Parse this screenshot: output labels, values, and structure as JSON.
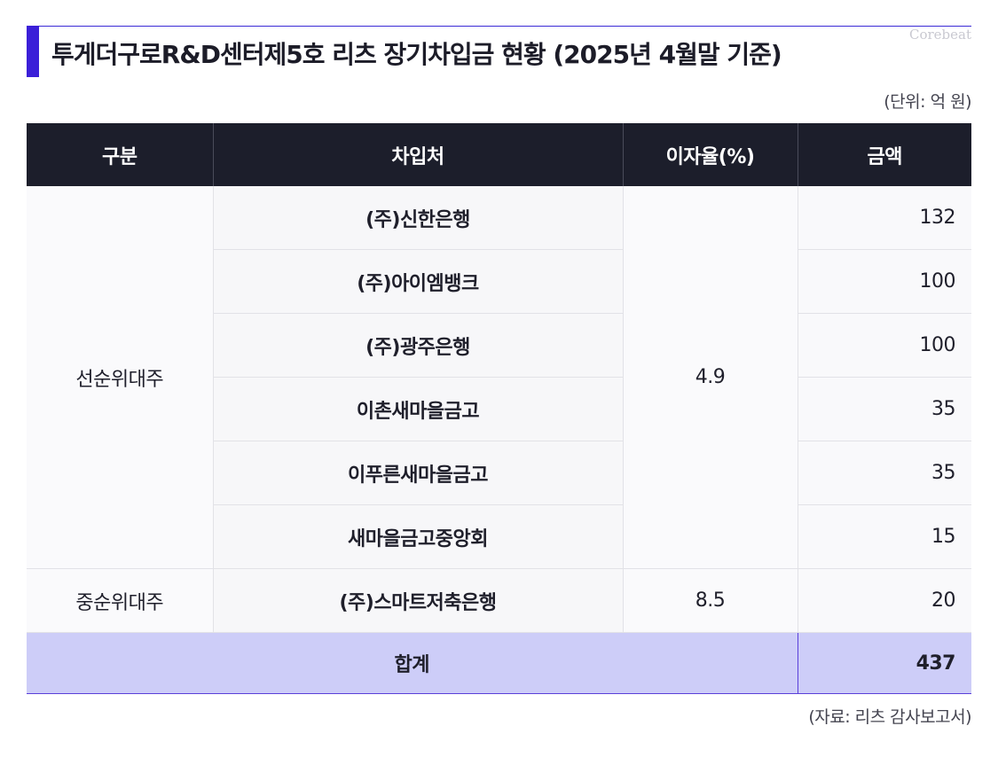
{
  "title": "투게더구로R&D센터제5호 리츠 장기차입금 현황 (2025년 4월말 기준)",
  "logo": "Corebeat",
  "unit": "(단위: 억 원)",
  "source": "(자료: 리츠 감사보고서)",
  "colors": {
    "accent": "#3b1fd8",
    "header_bg": "#1c1e2b",
    "total_bg": "#cdcdf8"
  },
  "table": {
    "headers": [
      "구분",
      "차입처",
      "이자율(%)",
      "금액"
    ],
    "groups": [
      {
        "category": "선순위대주",
        "rate": "4.9",
        "rows": [
          {
            "lender": "(주)신한은행",
            "amount": "132"
          },
          {
            "lender": "(주)아이엠뱅크",
            "amount": "100"
          },
          {
            "lender": "(주)광주은행",
            "amount": "100"
          },
          {
            "lender": "이촌새마을금고",
            "amount": "35"
          },
          {
            "lender": "이푸른새마을금고",
            "amount": "35"
          },
          {
            "lender": "새마을금고중앙회",
            "amount": "15"
          }
        ]
      },
      {
        "category": "중순위대주",
        "rate": "8.5",
        "rows": [
          {
            "lender": "(주)스마트저축은행",
            "amount": "20"
          }
        ]
      }
    ],
    "total": {
      "label": "합계",
      "amount": "437"
    }
  }
}
